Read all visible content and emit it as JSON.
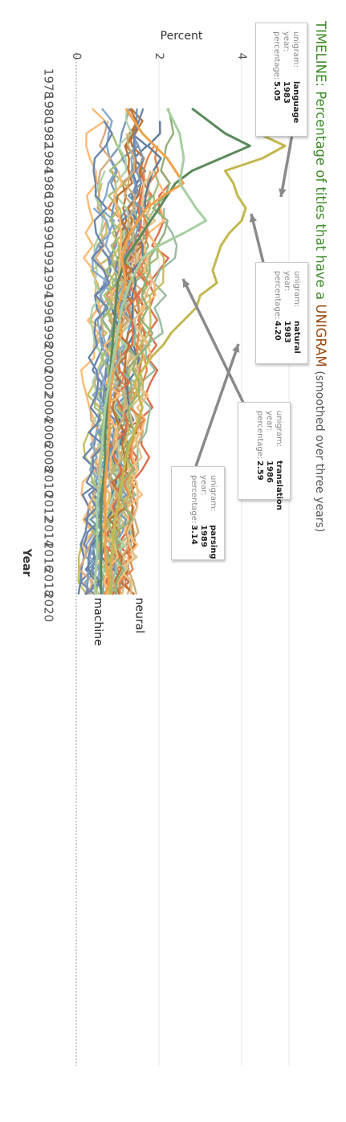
{
  "title": {
    "part1": "TIMELINE: Percentage of titles that have a ",
    "part2": "UNIGRAM",
    "part3": " (smoothed over three years)"
  },
  "chart_data": {
    "type": "line",
    "xlabel": "Year",
    "ylabel": "Percent",
    "xlim": [
      1977,
      2021
    ],
    "ylim": [
      0,
      5.5
    ],
    "xticks": [
      "1978",
      "1980",
      "1982",
      "1984",
      "1986",
      "1988",
      "1990",
      "1992",
      "1994",
      "1996",
      "1998",
      "2000",
      "2002",
      "2004",
      "2006",
      "2008",
      "2010",
      "2012",
      "2014",
      "2016",
      "2018",
      "2020"
    ],
    "yticks": [
      "0",
      "2",
      "4"
    ],
    "end_labels": [
      {
        "series": "neural",
        "year": 2019,
        "value": 1.6
      },
      {
        "series": "machine",
        "year": 2019,
        "value": 0.6
      }
    ],
    "highlight_series": [
      {
        "name": "language",
        "color": "#c2b84f",
        "x": [
          1980,
          1981,
          1982,
          1983,
          1984,
          1985,
          1986,
          1987,
          1988,
          1989,
          1990,
          1991,
          1992,
          1993,
          1994,
          1995,
          1996,
          1997,
          1998,
          1999,
          2000,
          2001,
          2002,
          2003,
          2004,
          2006,
          2008,
          2010,
          2012,
          2014,
          2016,
          2018,
          2019
        ],
        "y": [
          5.0,
          4.7,
          4.4,
          5.05,
          4.5,
          3.6,
          3.8,
          3.9,
          4.1,
          4.0,
          3.7,
          3.5,
          3.4,
          3.3,
          3.4,
          3.0,
          2.9,
          2.6,
          2.3,
          2.1,
          1.8,
          1.6,
          1.4,
          1.5,
          1.6,
          1.4,
          1.2,
          1.1,
          1.0,
          0.9,
          0.85,
          0.8,
          0.8
        ]
      },
      {
        "name": "natural",
        "color": "#5c8a5c",
        "x": [
          1980,
          1981,
          1982,
          1983,
          1984,
          1985,
          1986,
          1987,
          1988,
          1989,
          1990,
          1991,
          1992,
          1993,
          1994,
          1996,
          1998,
          2000,
          2002,
          2004,
          2006,
          2008,
          2010,
          2012,
          2014,
          2016,
          2018,
          2019
        ],
        "y": [
          2.8,
          3.2,
          3.6,
          4.2,
          3.5,
          2.8,
          2.4,
          2.2,
          2.0,
          1.8,
          1.6,
          1.4,
          1.2,
          1.1,
          1.0,
          0.95,
          0.9,
          0.85,
          0.8,
          0.75,
          0.7,
          0.7,
          0.65,
          0.6,
          0.6,
          0.6,
          0.6,
          0.6
        ]
      },
      {
        "name": "translation",
        "color": "#f0a24a",
        "x": [
          1980,
          1982,
          1984,
          1985,
          1986,
          1987,
          1988,
          1990,
          1992,
          1994,
          1996,
          1998,
          2000,
          2002,
          2004,
          2006,
          2008,
          2010,
          2012,
          2014,
          2016,
          2018,
          2019
        ],
        "y": [
          1.2,
          1.6,
          2.2,
          2.4,
          2.59,
          2.1,
          1.7,
          1.3,
          1.1,
          1.2,
          1.0,
          1.1,
          0.9,
          0.85,
          0.8,
          0.8,
          0.75,
          0.7,
          0.7,
          0.7,
          0.7,
          0.8,
          0.7
        ]
      },
      {
        "name": "parsing",
        "color": "#a6cfa0",
        "x": [
          1980,
          1982,
          1984,
          1986,
          1987,
          1988,
          1989,
          1990,
          1991,
          1992,
          1994,
          1996,
          1998,
          2000,
          2002,
          2004,
          2006,
          2008,
          2010,
          2012,
          2014,
          2016,
          2018,
          2019
        ],
        "y": [
          2.2,
          2.5,
          2.6,
          2.5,
          2.7,
          2.9,
          3.14,
          2.6,
          2.0,
          1.6,
          1.3,
          1.1,
          1.0,
          0.9,
          0.8,
          0.7,
          0.65,
          0.6,
          0.55,
          0.5,
          0.5,
          0.5,
          0.45,
          0.45
        ]
      }
    ],
    "tooltips": [
      {
        "unigram": "language",
        "year": "1983",
        "percentage": "5.05"
      },
      {
        "unigram": "natural",
        "year": "1983",
        "percentage": "4.20"
      },
      {
        "unigram": "translation",
        "year": "1986",
        "percentage": "2.59"
      },
      {
        "unigram": "parsing",
        "year": "1989",
        "percentage": "3.14"
      }
    ],
    "background_palette": [
      "#e07b39",
      "#4e6e8e",
      "#c2b84f",
      "#a6cfa0",
      "#7aa0c4",
      "#d95f3b",
      "#9bb86a",
      "#e0c080",
      "#6b8fb0",
      "#b5651d",
      "#c9a66b",
      "#87a96b",
      "#ffb366",
      "#5b7aa6",
      "#d4a373",
      "#8db596"
    ]
  },
  "tooltip_keys": {
    "unigram": "unigram:",
    "year": "year:",
    "percentage": "percentage:"
  }
}
